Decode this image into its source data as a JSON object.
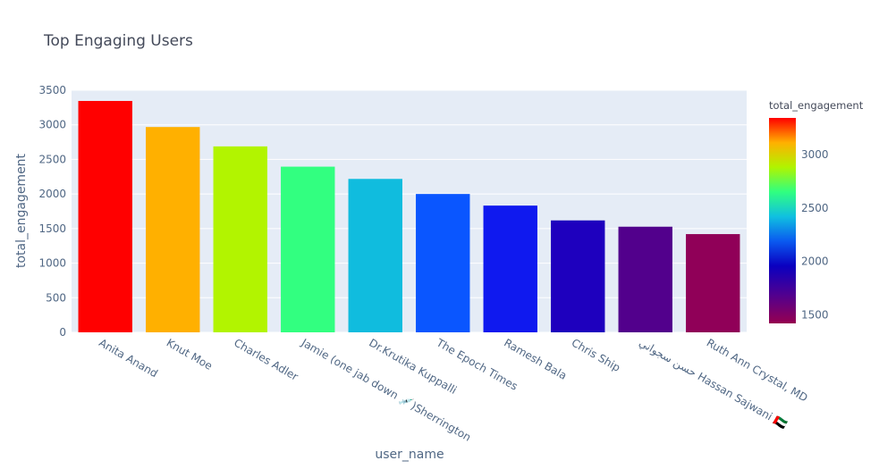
{
  "chart_data": {
    "type": "bar",
    "title": "Top Engaging Users",
    "xlabel": "user_name",
    "ylabel": "total_engagement",
    "ylim": [
      0,
      3500
    ],
    "yticks": [
      0,
      500,
      1000,
      1500,
      2000,
      2500,
      3000,
      3500
    ],
    "grid": true,
    "categories": [
      "Anita Anand",
      "Knut Moe",
      "Charles Adler",
      "Jamie (one jab down 💉)Sherrington",
      "Dr.Krutika Kuppalli",
      "The Epoch Times",
      "Ramesh Bala",
      "Chris Ship",
      "حسن سجواني Hassan Sajwani 🇦🇪",
      "Ruth Ann Crystal, MD"
    ],
    "values": [
      3345,
      2968,
      2688,
      2395,
      2218,
      2000,
      1832,
      1618,
      1527,
      1420
    ],
    "bar_colors": [
      "#ff0000",
      "#ffb000",
      "#b2f400",
      "#32ff80",
      "#10bcde",
      "#0a56ff",
      "#0f19ef",
      "#1e00be",
      "#52008c",
      "#900058"
    ],
    "colorbar": {
      "title": "total_engagement",
      "range": [
        1420,
        3345
      ],
      "ticks": [
        1500,
        2000,
        2500,
        3000
      ],
      "scale": "rainbow"
    }
  }
}
